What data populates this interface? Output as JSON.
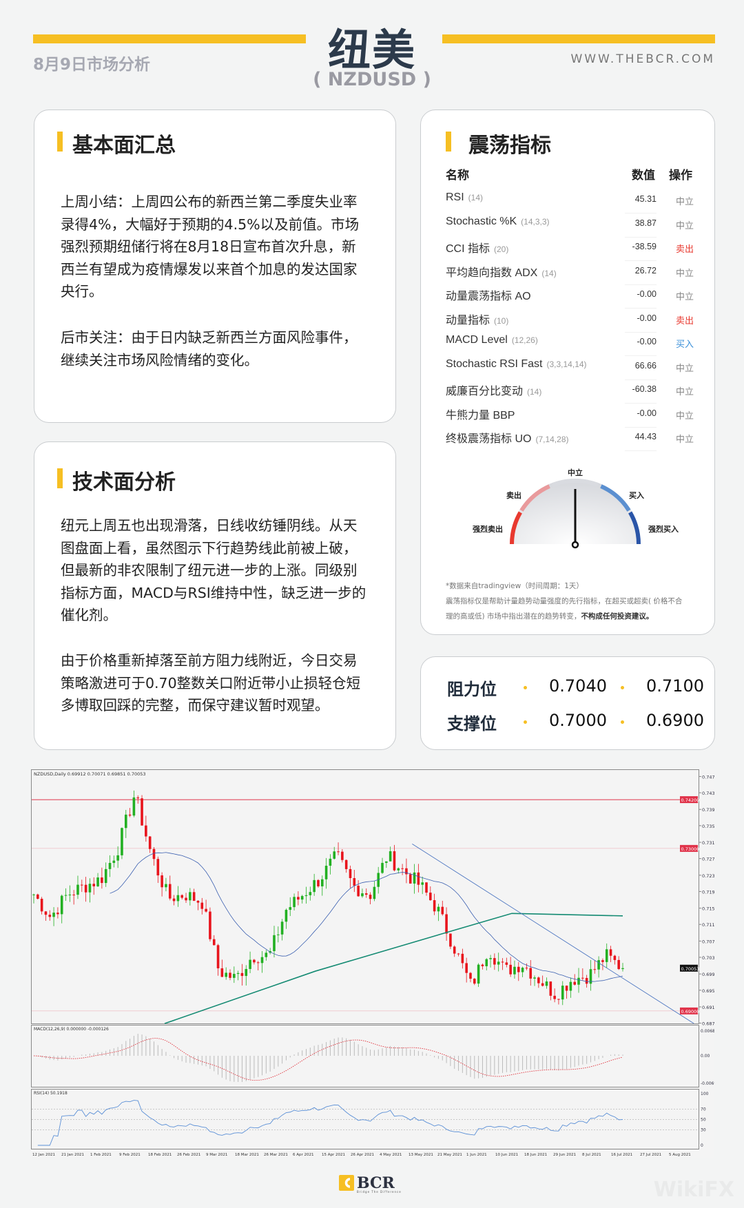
{
  "header": {
    "title": "纽美",
    "symbol": "( NZDUSD )",
    "date_label": "8月9日市场分析",
    "website": "WWW.THEBCR.COM"
  },
  "colors": {
    "accent": "#f6bf23",
    "sell": "#e8392f",
    "buy": "#3a8fd8",
    "neutral": "#888888",
    "candle_up": "#22b022",
    "candle_down": "#e8141c",
    "ma_short": "#3a5fb0",
    "ma_long": "#138a72"
  },
  "fundamentals": {
    "title": "基本面汇总",
    "paragraphs": [
      {
        "lines": [
          "上周小结：上周四公布的新西兰第二季度失业率",
          "录得4%，大幅好于预期的4.5%以及前值。市场",
          "强烈预期纽储行将在8月18日宣布首次升息，新",
          "西兰有望成为疫情爆发以来首个加息的发达国家",
          "央行。"
        ]
      },
      {
        "lines": [
          "后市关注：由于日内缺乏新西兰方面风险事件，",
          "继续关注市场风险情绪的变化。"
        ]
      }
    ]
  },
  "technicals": {
    "title": "技术面分析",
    "paragraphs": [
      {
        "lines": [
          "纽元上周五也出现滑落，日线收纺锤阴线。从天",
          "图盘面上看，虽然图示下行趋势线此前被上破，",
          "但最新的非农限制了纽元进一步的上涨。同级别",
          "指标方面，MACD与RSI维持中性，缺乏进一步的",
          "催化剂。"
        ]
      },
      {
        "lines": [
          "由于价格重新掉落至前方阻力线附近，今日交易",
          "策略激进可于0.70整数关口附近带小止损轻仓短",
          "多博取回踩的完整，而保守建议暂时观望。"
        ]
      }
    ]
  },
  "oscillators": {
    "title": "震荡指标",
    "columns": {
      "name": "名称",
      "value": "数值",
      "action": "操作"
    },
    "rows": [
      {
        "name": "RSI",
        "params": "(14)",
        "value": "45.31",
        "action": "中立",
        "type": "neutral"
      },
      {
        "name": "Stochastic %K",
        "params": "(14,3,3)",
        "value": "38.87",
        "action": "中立",
        "type": "neutral"
      },
      {
        "name": "CCI 指标",
        "params": "(20)",
        "value": "-38.59",
        "action": "卖出",
        "type": "sell"
      },
      {
        "name": "平均趋向指数 ADX",
        "params": "(14)",
        "value": "26.72",
        "action": "中立",
        "type": "neutral"
      },
      {
        "name": "动量震荡指标 AO",
        "params": "",
        "value": "-0.00",
        "action": "中立",
        "type": "neutral"
      },
      {
        "name": "动量指标",
        "params": "(10)",
        "value": "-0.00",
        "action": "卖出",
        "type": "sell"
      },
      {
        "name": "MACD Level",
        "params": "(12,26)",
        "value": "-0.00",
        "action": "买入",
        "type": "buy"
      },
      {
        "name": "Stochastic RSI Fast",
        "params": "(3,3,14,14)",
        "value": "66.66",
        "action": "中立",
        "type": "neutral"
      },
      {
        "name": "威廉百分比变动",
        "params": "(14)",
        "value": "-60.38",
        "action": "中立",
        "type": "neutral"
      },
      {
        "name": "牛熊力量 BBP",
        "params": "",
        "value": "-0.00",
        "action": "中立",
        "type": "neutral"
      },
      {
        "name": "终极震荡指标 UO",
        "params": "(7,14,28)",
        "value": "44.43",
        "action": "中立",
        "type": "neutral"
      }
    ],
    "gauge": {
      "labels": {
        "neutral": "中立",
        "sell": "卖出",
        "buy": "买入",
        "strong_sell": "强烈卖出",
        "strong_buy": "强烈买入"
      },
      "reading": "中立",
      "segment_colors": [
        "#e8392f",
        "#e99a9c",
        "#d9dbe0",
        "#5b8fd0",
        "#2a55a8"
      ]
    },
    "notes": {
      "source": "*数据来自tradingview（时间周期：1天）",
      "disclaimer_1": "震荡指标仅是帮助计量趋势动量强度的先行指标，在超买或超卖( 价格不合",
      "disclaimer_2": "理的高或低) 市场中指出潜在的趋势转变，",
      "disclaimer_bold": "不构成任何投资建议。"
    }
  },
  "levels": {
    "resistance_label": "阻力位",
    "support_label": "支撑位",
    "resistance": [
      "0.7040",
      "0.7100"
    ],
    "support": [
      "0.7000",
      "0.6900"
    ]
  },
  "chart_data": {
    "type": "candlestick",
    "header": "NZDUSD,Daily  0.69912 0.70071 0.69851 0.70053",
    "start_date": "2021-01-11",
    "end_date": "2021-08-06",
    "closes": [
      0.7187,
      0.7131,
      0.7187,
      0.7207,
      0.7225,
      0.7301,
      0.7434,
      0.7282,
      0.7178,
      0.7187,
      0.7168,
      0.6998,
      0.6979,
      0.7036,
      0.7036,
      0.7149,
      0.7187,
      0.7225,
      0.7282,
      0.7207,
      0.7187,
      0.7282,
      0.7244,
      0.7207,
      0.7149,
      0.7055,
      0.696,
      0.7055,
      0.6998,
      0.7017,
      0.6979,
      0.6941,
      0.6979,
      0.6988,
      0.7036,
      0.7005
    ],
    "last_price": "0.70053",
    "ylim": [
      0.6862,
      0.7492
    ],
    "price_ticks": [
      "0.74770",
      "0.74370",
      "0.73960",
      "0.73560",
      "0.73150",
      "0.72750",
      "0.72340",
      "0.71940",
      "0.71530",
      "0.71130",
      "0.70720",
      "0.70320",
      "0.69910",
      "0.69510",
      "0.69100",
      "0.68700"
    ],
    "horizontal_lines": [
      {
        "price": 0.742,
        "label": "0.74200",
        "color": "#e0334a"
      },
      {
        "price": 0.73,
        "label": "0.73000",
        "color": "#e0334a"
      },
      {
        "price": 0.69,
        "label": "0.69000",
        "color": "#e0334a"
      }
    ],
    "ma_long": [
      {
        "date": "2021-02-26",
        "price": 0.6869
      },
      {
        "date": "2021-04-20",
        "price": 0.6998
      },
      {
        "date": "2021-06-05",
        "price": 0.7093
      },
      {
        "date": "2021-06-28",
        "price": 0.714
      },
      {
        "date": "2021-08-06",
        "price": 0.7134
      }
    ],
    "trendline": [
      {
        "date": "2021-05-24",
        "price": 0.7311
      },
      {
        "date": "2021-08-31",
        "price": 0.6869
      }
    ],
    "macd": {
      "header": "MACD(12,26,9) 0.000000 -0.000126",
      "ticks": [
        "0.006844",
        "0.00",
        "-0.00695"
      ]
    },
    "rsi": {
      "header": "RSI(14) 50.1918",
      "ticks": [
        "100",
        "70",
        "50",
        "30",
        "0"
      ]
    },
    "date_ticks": [
      "12 Jan 2021",
      "21 Jan 2021",
      "1 Feb 2021",
      "9 Feb 2021",
      "18 Feb 2021",
      "26 Feb 2021",
      "9 Mar 2021",
      "18 Mar 2021",
      "26 Mar 2021",
      "6 Apr 2021",
      "15 Apr 2021",
      "26 Apr 2021",
      "4 May 2021",
      "13 May 2021",
      "21 May 2021",
      "1 Jun 2021",
      "10 Jun 2021",
      "18 Jun 2021",
      "29 Jun 2021",
      "8 Jul 2021",
      "16 Jul 2021",
      "27 Jul 2021",
      "5 Aug 2021"
    ]
  },
  "footer": {
    "logo": "BCR",
    "tagline": "Bridge The Difference",
    "watermark": "WikiFX"
  }
}
